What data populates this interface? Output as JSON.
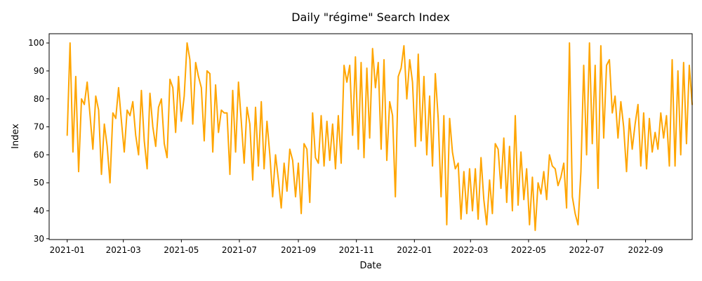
{
  "chart_data": {
    "type": "line",
    "title": "Daily \"régime\" Search Index",
    "xlabel": "Date",
    "ylabel": "Index",
    "x_range": [
      "2020-12-13",
      "2022-10-20"
    ],
    "ylim": [
      29.7,
      103.3
    ],
    "grid": false,
    "color": "#FFA500",
    "x_ticks": [
      "2021-01",
      "2021-03",
      "2021-05",
      "2021-07",
      "2021-09",
      "2021-11",
      "2022-01",
      "2022-03",
      "2022-05",
      "2022-07",
      "2022-09"
    ],
    "y_ticks": [
      30,
      40,
      50,
      60,
      70,
      80,
      90,
      100
    ],
    "sampling": "every 3rd day (approximate reading)",
    "series": [
      {
        "x_start": "2021-01-01",
        "step_days": 3,
        "values": [
          67,
          100,
          61,
          88,
          54,
          80,
          78,
          86,
          74,
          62,
          81,
          76,
          53,
          71,
          63,
          50,
          75,
          73,
          84,
          72,
          61,
          76,
          74,
          79,
          67,
          60,
          83,
          65,
          55,
          82,
          70,
          63,
          77,
          80,
          64,
          59,
          87,
          84,
          68,
          88,
          72,
          81,
          100,
          94,
          71,
          93,
          88,
          84,
          65,
          90,
          89,
          61,
          85,
          68,
          76,
          75,
          75,
          53,
          83,
          61,
          86,
          72,
          57,
          77,
          71,
          51,
          77,
          56,
          79,
          55,
          72,
          60,
          45,
          60,
          51,
          41,
          57,
          47,
          62,
          58,
          45,
          57,
          39,
          64,
          62,
          43,
          75,
          59,
          57,
          74,
          56,
          72,
          58,
          71,
          55,
          74,
          57,
          92,
          86,
          92,
          67,
          95,
          62,
          93,
          59,
          91,
          66,
          98,
          84,
          93,
          62,
          94,
          58,
          79,
          74,
          45,
          88,
          91,
          99,
          80,
          94,
          86,
          63,
          96,
          65,
          88,
          60,
          81,
          56,
          89,
          73,
          45,
          74,
          35,
          73,
          61,
          55,
          57,
          37,
          54,
          39,
          55,
          40,
          55,
          37,
          59,
          44,
          35,
          51,
          39,
          64,
          62,
          48,
          66,
          43,
          63,
          40,
          74,
          42,
          61,
          44,
          55,
          35,
          52,
          33,
          50,
          46,
          54,
          44,
          60,
          56,
          55,
          49,
          52,
          57,
          41,
          100,
          45,
          39,
          35,
          54,
          92,
          60,
          100,
          64,
          92,
          48,
          99,
          66,
          92,
          94,
          75,
          81,
          66,
          79,
          70,
          54,
          73,
          62,
          71,
          78,
          56,
          75,
          55,
          73,
          61,
          68,
          62,
          75,
          66,
          74,
          56,
          94,
          56,
          90,
          60,
          93,
          64,
          92,
          78
        ]
      }
    ]
  }
}
